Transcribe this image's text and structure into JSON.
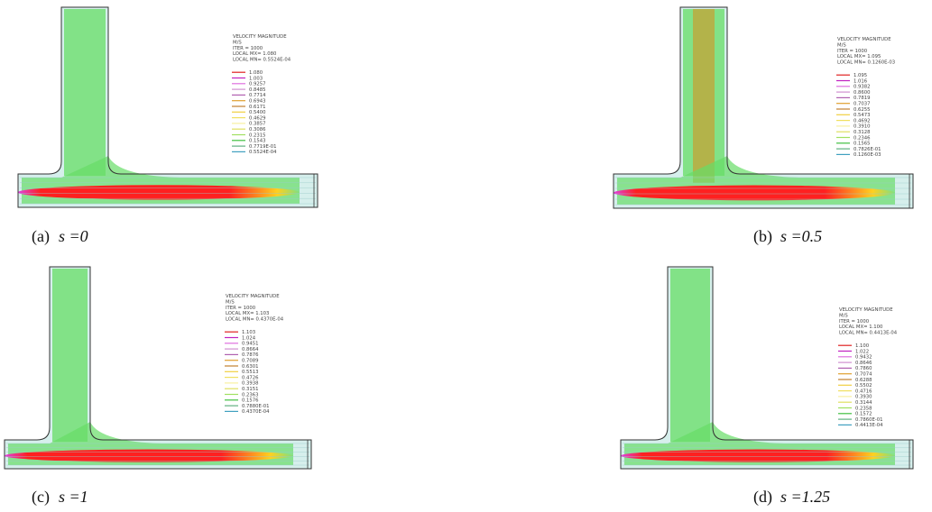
{
  "panels": [
    {
      "caption": {
        "label": "(a)",
        "expr": "s =0"
      },
      "header": [
        "VELOCITY MAGNITUDE",
        "M/S",
        "ITER =   1000",
        "LOCAL MX= 1.080",
        "LOCAL MN= 0.5524E-04"
      ],
      "legend": [
        "1.080",
        "1.003",
        "0.9257",
        "0.8485",
        "0.7714",
        "0.6943",
        "0.6171",
        "0.5400",
        "0.4629",
        "0.3857",
        "0.3086",
        "0.2315",
        "0.1543",
        "0.7719E-01",
        "0.5524E-04"
      ]
    },
    {
      "caption": {
        "label": "(b)",
        "expr": "s =0.5"
      },
      "header": [
        "VELOCITY MAGNITUDE",
        "M/S",
        "ITER =   1000",
        "LOCAL MX= 1.095",
        "LOCAL MN= 0.1260E-03"
      ],
      "legend": [
        "1.095",
        "1.016",
        "0.9382",
        "0.8600",
        "0.7819",
        "0.7037",
        "0.6255",
        "0.5473",
        "0.4692",
        "0.3910",
        "0.3128",
        "0.2346",
        "0.1565",
        "0.7826E-01",
        "0.1260E-03"
      ]
    },
    {
      "caption": {
        "label": "(c)",
        "expr": "s =1"
      },
      "header": [
        "VELOCITY MAGNITUDE",
        "M/S",
        "ITER =   1000",
        "LOCAL MX= 1.103",
        "LOCAL MN= 0.4370E-04"
      ],
      "legend": [
        "1.103",
        "1.024",
        "0.9451",
        "0.8664",
        "0.7876",
        "0.7089",
        "0.6301",
        "0.5513",
        "0.4726",
        "0.3938",
        "0.3151",
        "0.2363",
        "0.1576",
        "0.7880E-01",
        "0.4370E-04"
      ]
    },
    {
      "caption": {
        "label": "(d)",
        "expr": "s =1.25"
      },
      "header": [
        "VELOCITY MAGNITUDE",
        "M/S",
        "ITER =   1000",
        "LOCAL MX= 1.100",
        "LOCAL MN= 0.4413E-04"
      ],
      "legend": [
        "1.100",
        "1.022",
        "0.9432",
        "0.8646",
        "0.7860",
        "0.7074",
        "0.6288",
        "0.5502",
        "0.4716",
        "0.3930",
        "0.3144",
        "0.2358",
        "0.1572",
        "0.7860E-01",
        "0.4413E-04"
      ]
    }
  ]
}
